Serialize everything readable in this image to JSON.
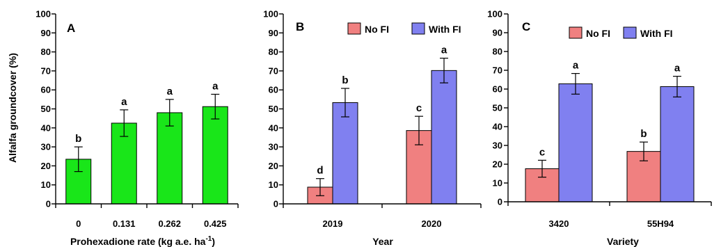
{
  "colors": {
    "green": "#19e619",
    "no_fi": "#f08080",
    "with_fi": "#8080f0",
    "axis": "#000000"
  },
  "chart_data": [
    {
      "type": "bar",
      "panel_label": "A",
      "ylabel": "Alfalfa groundcover (%)",
      "xlabel": "Prohexadione rate (kg a.e. ha",
      "xlabel_sup": "-1",
      "xlabel_close": ")",
      "ylim": [
        0,
        100
      ],
      "yticks": [
        "0",
        "10",
        "20",
        "30",
        "40",
        "50",
        "60",
        "70",
        "80",
        "90",
        "100"
      ],
      "categories": [
        "0",
        "0.131",
        "0.262",
        "0.425"
      ],
      "series": [
        {
          "values": [
            23.5,
            42.5,
            48,
            51.2
          ],
          "errors": [
            6.5,
            7,
            7,
            6.5
          ],
          "letters": [
            "b",
            "a",
            "a",
            "a"
          ],
          "color": "#19e619"
        }
      ]
    },
    {
      "type": "bar",
      "panel_label": "B",
      "xlabel": "Year",
      "ylim": [
        0,
        100
      ],
      "yticks": [
        "0",
        "10",
        "20",
        "30",
        "40",
        "50",
        "60",
        "70",
        "80",
        "90",
        "100"
      ],
      "categories": [
        "2019",
        "2020"
      ],
      "legend": [
        "No FI",
        "With FI"
      ],
      "series": [
        {
          "name": "No FI",
          "values": [
            8.8,
            38.6
          ],
          "errors": [
            4.5,
            7.5
          ],
          "letters": [
            "d",
            "c"
          ],
          "color": "#f08080"
        },
        {
          "name": "With FI",
          "values": [
            53.3,
            70.2
          ],
          "errors": [
            7.5,
            6.5
          ],
          "letters": [
            "b",
            "a"
          ],
          "color": "#8080f0"
        }
      ]
    },
    {
      "type": "bar",
      "panel_label": "C",
      "xlabel": "Variety",
      "ylim": [
        0,
        100
      ],
      "yticks": [
        "0",
        "10",
        "20",
        "30",
        "40",
        "50",
        "60",
        "70",
        "80",
        "90",
        "100"
      ],
      "categories": [
        "3420",
        "55H94"
      ],
      "legend": [
        "No FI",
        "With FI"
      ],
      "series": [
        {
          "name": "No FI",
          "values": [
            17.6,
            26.8
          ],
          "errors": [
            4.5,
            5
          ],
          "letters": [
            "c",
            "b"
          ],
          "color": "#f08080"
        },
        {
          "name": "With FI",
          "values": [
            62.8,
            61.3
          ],
          "errors": [
            5.5,
            5.5
          ],
          "letters": [
            "a",
            "a"
          ],
          "color": "#8080f0"
        }
      ]
    }
  ]
}
